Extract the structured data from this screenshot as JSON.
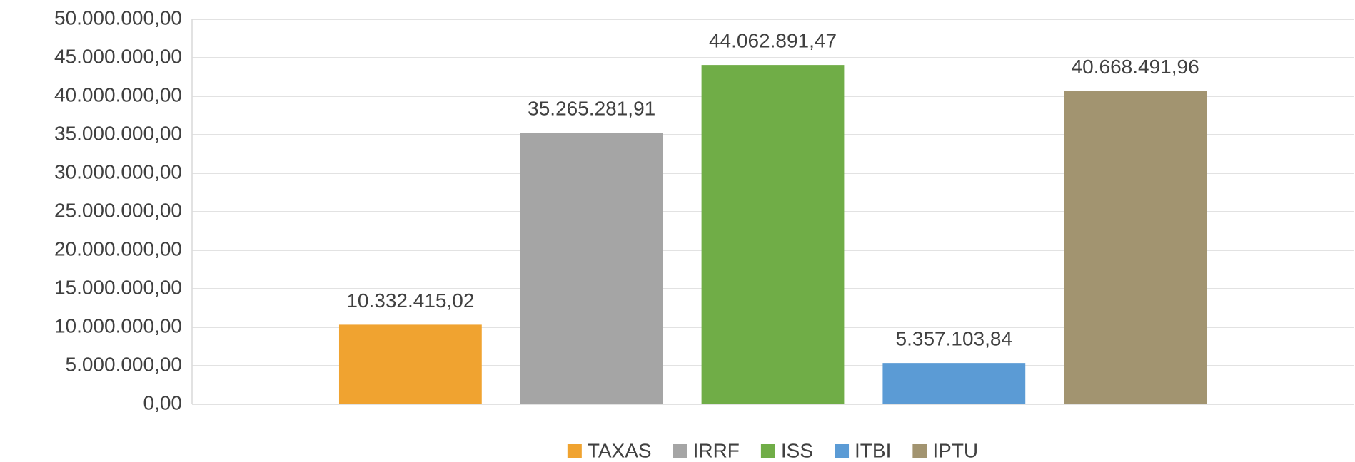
{
  "chart_data": {
    "type": "bar",
    "categories": [
      null
    ],
    "series": [
      {
        "name": "TAXAS",
        "color": "#f0a330",
        "values": [
          10332415.02
        ],
        "value_labels": [
          "10.332.415,02"
        ]
      },
      {
        "name": "IRRF",
        "color": "#a5a5a5",
        "values": [
          35265281.91
        ],
        "value_labels": [
          "35.265.281,91"
        ]
      },
      {
        "name": "ISS",
        "color": "#70ad47",
        "values": [
          44062891.47
        ],
        "value_labels": [
          "44.062.891,47"
        ]
      },
      {
        "name": "ITBI",
        "color": "#5b9bd5",
        "values": [
          5357103.84
        ],
        "value_labels": [
          "5.357.103,84"
        ]
      },
      {
        "name": "IPTU",
        "color": "#a29470",
        "values": [
          40668491.96
        ],
        "value_labels": [
          "40.668.491,96"
        ]
      }
    ],
    "ylim": [
      0,
      50000000
    ],
    "yticks": [
      {
        "value": 0,
        "label": "0,00"
      },
      {
        "value": 5000000,
        "label": "5.000.000,00"
      },
      {
        "value": 10000000,
        "label": "10.000.000,00"
      },
      {
        "value": 15000000,
        "label": "15.000.000,00"
      },
      {
        "value": 20000000,
        "label": "20.000.000,00"
      },
      {
        "value": 25000000,
        "label": "25.000.000,00"
      },
      {
        "value": 30000000,
        "label": "30.000.000,00"
      },
      {
        "value": 35000000,
        "label": "35.000.000,00"
      },
      {
        "value": 40000000,
        "label": "40.000.000,00"
      },
      {
        "value": 45000000,
        "label": "45.000.000,00"
      },
      {
        "value": 50000000,
        "label": "50.000.000,00"
      }
    ],
    "grid": true,
    "legend": "bottom"
  }
}
